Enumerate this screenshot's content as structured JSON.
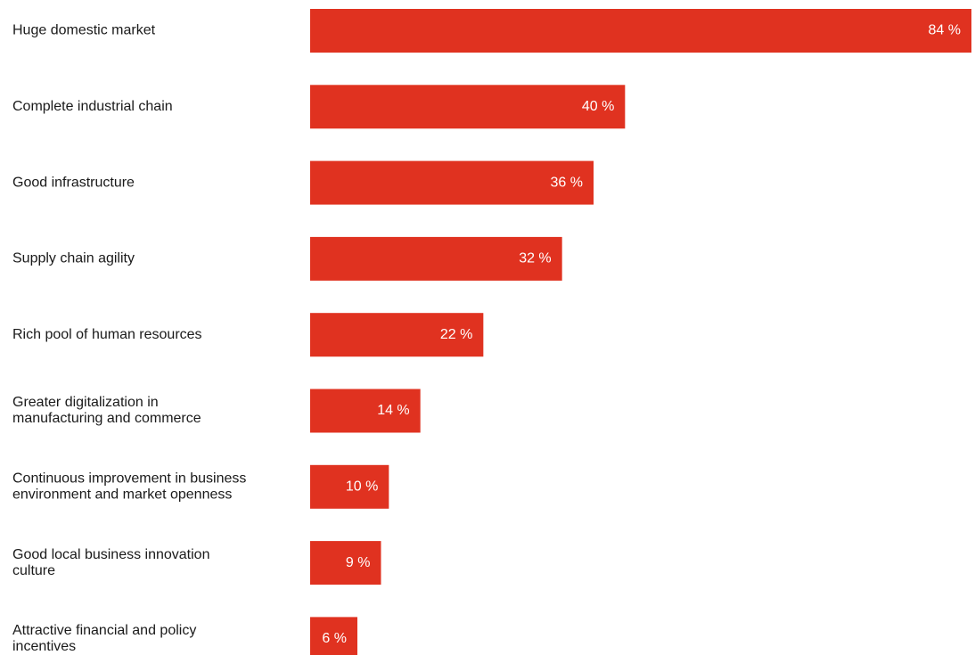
{
  "chart_data": {
    "type": "bar",
    "orientation": "horizontal",
    "title": "",
    "xlabel": "",
    "ylabel": "",
    "grid": false,
    "xlim": [
      0,
      84
    ],
    "bar_color": "#e03220",
    "unit": "%",
    "categories": [
      [
        "Huge domestic market"
      ],
      [
        "Complete industrial chain"
      ],
      [
        "Good infrastructure"
      ],
      [
        "Supply chain agility"
      ],
      [
        "Rich pool of human resources"
      ],
      [
        "Greater digitalization in",
        "manufacturing and commerce"
      ],
      [
        "Continuous improvement in business",
        "environment and market openness"
      ],
      [
        "Good local business innovation",
        "culture"
      ],
      [
        "Attractive financial and policy",
        "incentives"
      ]
    ],
    "values": [
      84,
      40,
      36,
      32,
      22,
      14,
      10,
      9,
      6
    ],
    "value_labels": [
      "84 %",
      "40 %",
      "36 %",
      "32 %",
      "22 %",
      "14 %",
      "10 %",
      "9 %",
      "6 %"
    ]
  }
}
